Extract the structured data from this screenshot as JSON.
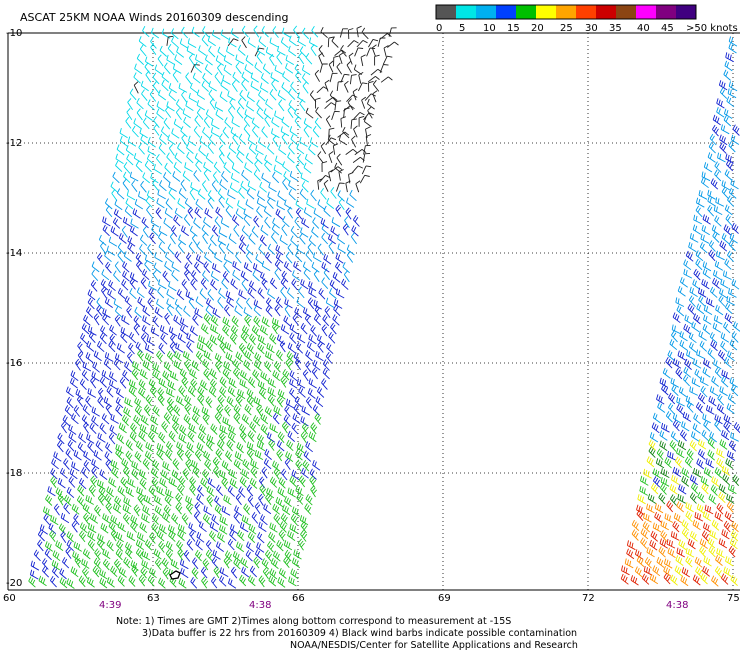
{
  "title": "ASCAT 25KM NOAA Winds 20160309 descending",
  "colorbar": {
    "labels": [
      "0",
      "5",
      "10",
      "15",
      "20",
      "25",
      "30",
      "35",
      "40",
      "45",
      ">50 knots"
    ],
    "colors": [
      "#555555",
      "#00e6e6",
      "#00b0f0",
      "#0040ff",
      "#00c000",
      "#ffff00",
      "#ffa500",
      "#ff4000",
      "#cc0000",
      "#8b4513",
      "#ff00ff",
      "#800080",
      "#400080"
    ]
  },
  "axes": {
    "lat_labels": [
      "-10",
      "-12",
      "-14",
      "-16",
      "-18",
      "-20"
    ],
    "lon_labels": [
      "60",
      "63",
      "66",
      "69",
      "72",
      "75"
    ]
  },
  "time_labels": [
    "4:39",
    "4:38",
    "4:38"
  ],
  "notes": [
    "Note: 1) Times are GMT 2)Times along bottom correspond to measurement at -15S",
    "3)Data buffer is 22 hrs from 20160309 4) Black wind barbs indicate possible contamination",
    "NOAA/NESDIS/Center for Satellite Applications and Research"
  ],
  "barb_colors": {
    "black": "#202020",
    "cyan": "#00d8e8",
    "lightblue": "#0098e8",
    "blue": "#1020d0",
    "green": "#20c020",
    "darkgreen": "#108010",
    "yellow": "#f0f000",
    "orange": "#ff9000",
    "red": "#e02000"
  }
}
